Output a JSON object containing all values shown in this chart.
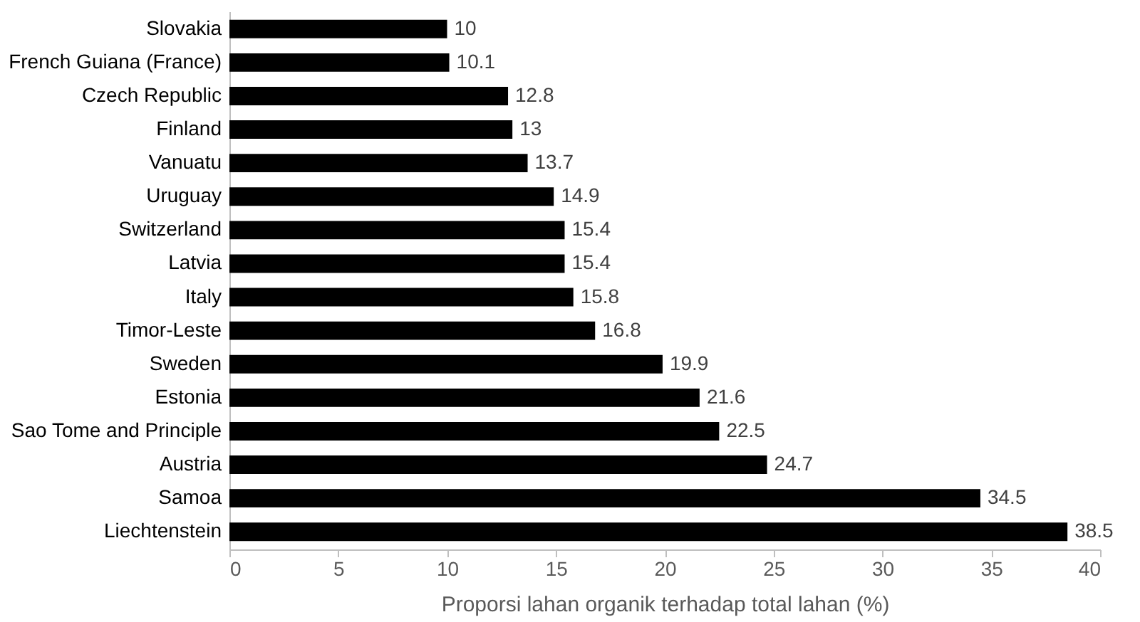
{
  "chart_data": {
    "type": "bar",
    "orientation": "horizontal",
    "xlabel": "Proporsi lahan organik terhadap total lahan (%)",
    "categories": [
      "Slovakia",
      "French Guiana (France)",
      "Czech Republic",
      "Finland",
      "Vanuatu",
      "Uruguay",
      "Switzerland",
      "Latvia",
      "Italy",
      "Timor-Leste",
      "Sweden",
      "Estonia",
      "Sao Tome and Principle",
      "Austria",
      "Samoa",
      "Liechtenstein"
    ],
    "values": [
      10,
      10.1,
      12.8,
      13,
      13.7,
      14.9,
      15.4,
      15.4,
      15.8,
      16.8,
      19.9,
      21.6,
      22.5,
      24.7,
      34.5,
      38.5
    ],
    "color": "#000000",
    "xlim": [
      0,
      40
    ],
    "xticks": [
      0,
      5,
      10,
      15,
      20,
      25,
      30,
      35,
      40
    ],
    "grid": false,
    "data_labels": true
  }
}
